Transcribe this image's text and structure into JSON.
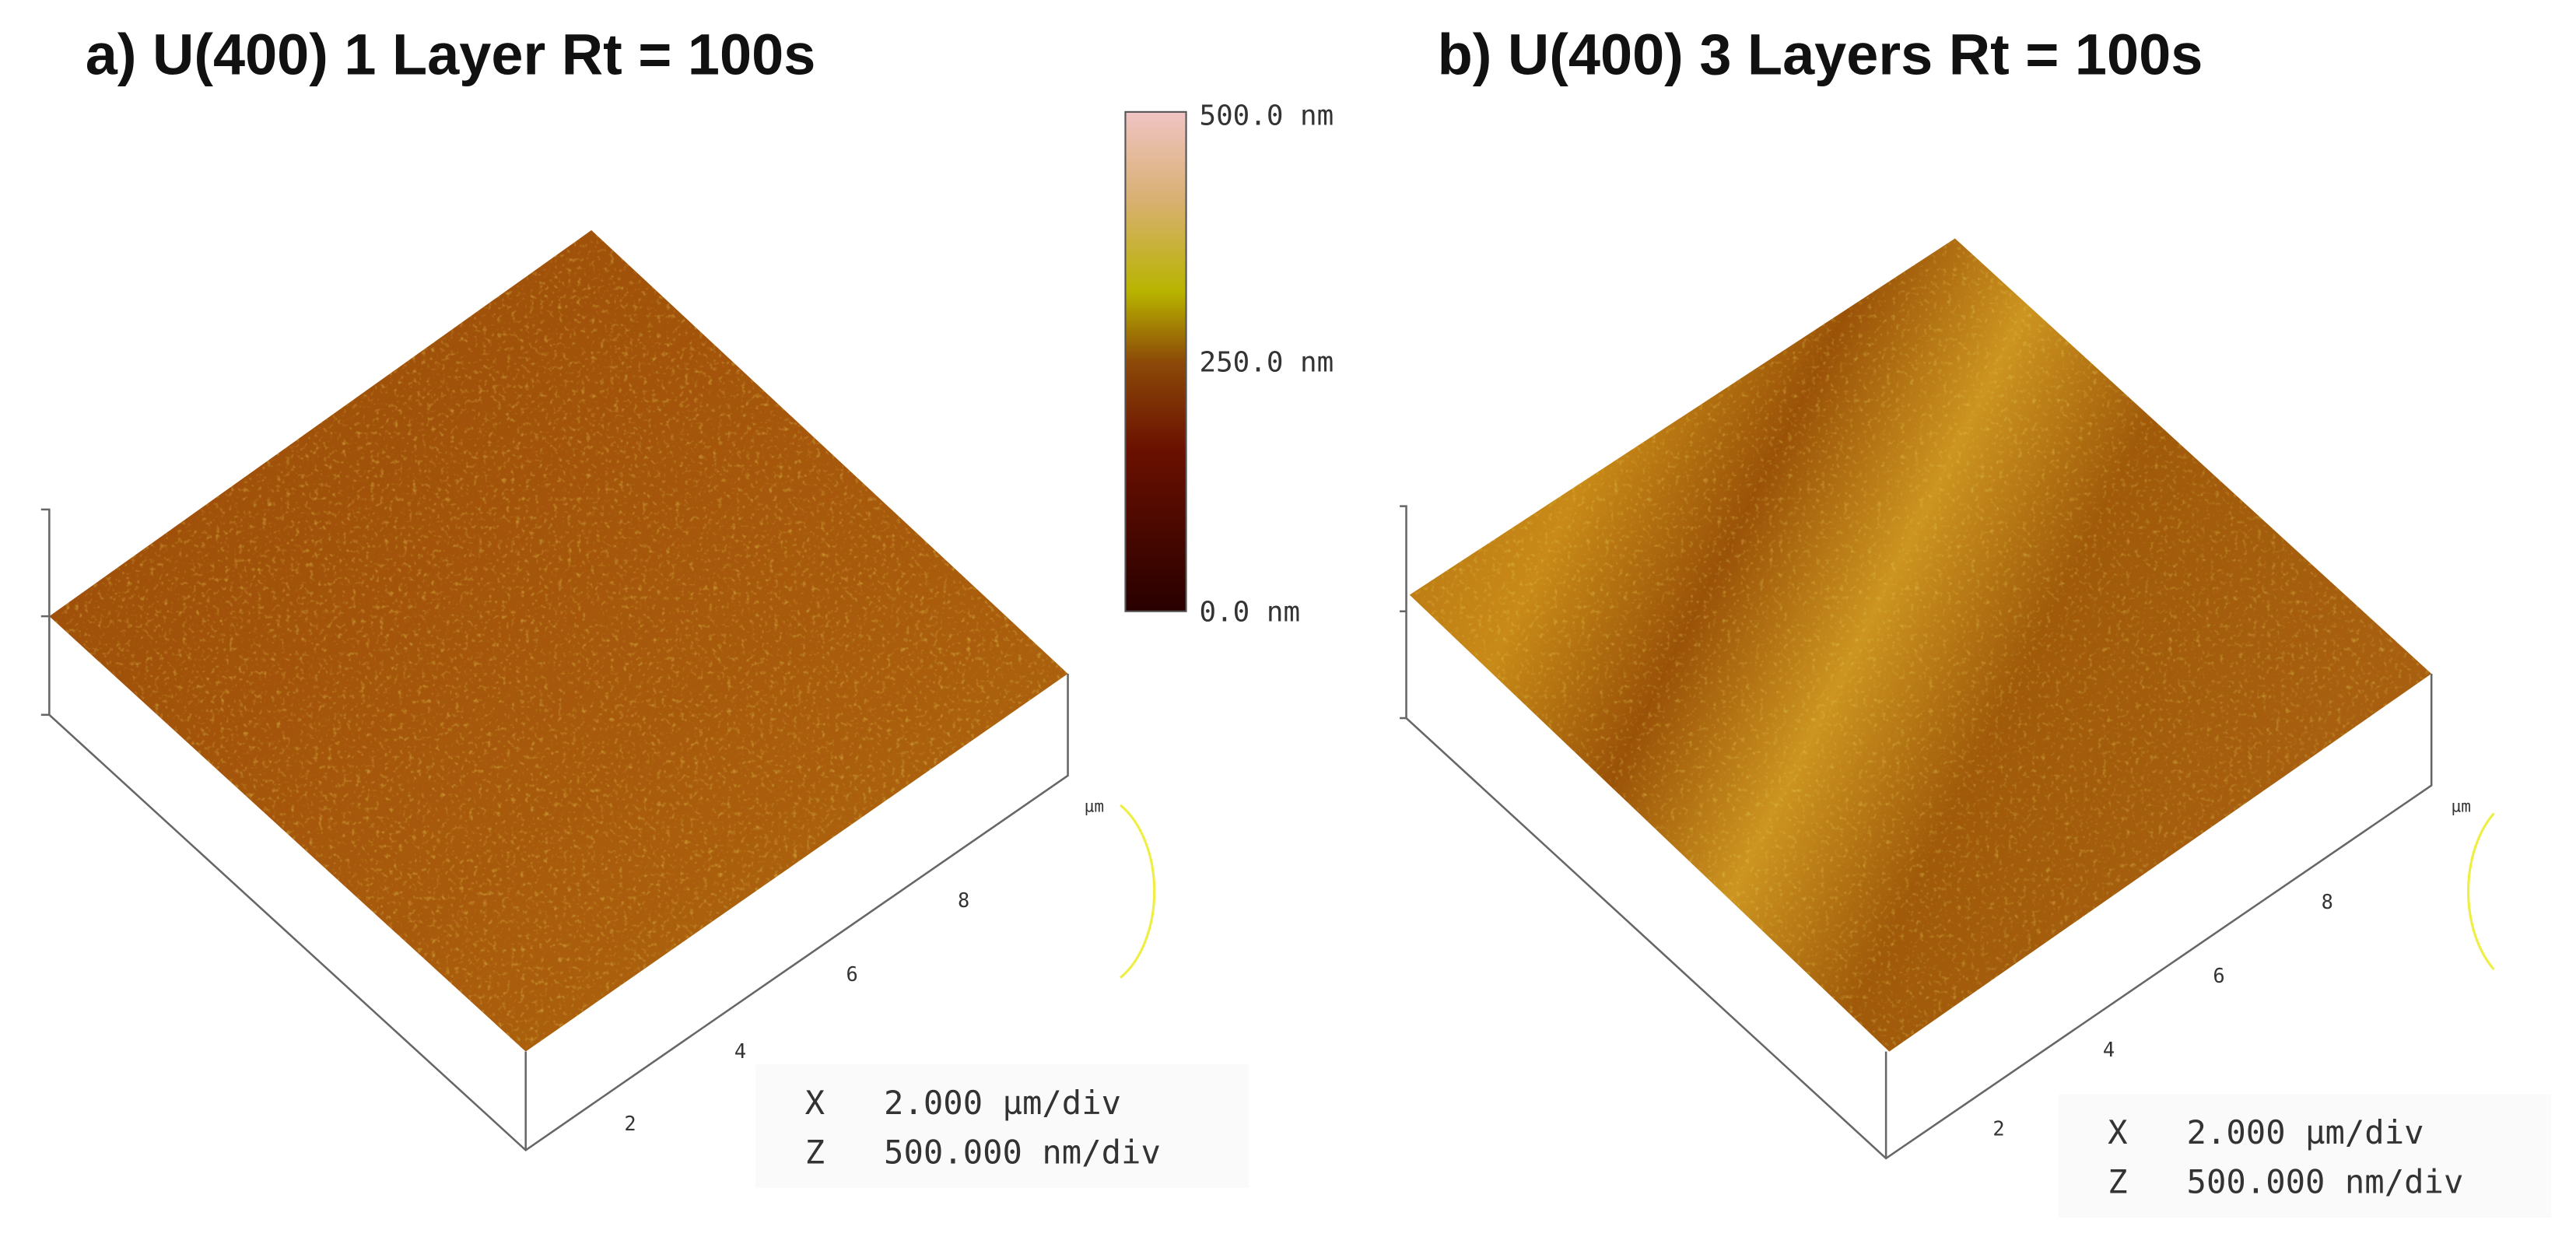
{
  "panels": [
    {
      "title": "a) U(400) 1 Layer  Rt = 100s",
      "axis_unit": "µm",
      "axis_ticks": [
        "2",
        "4",
        "6",
        "8"
      ],
      "scale": [
        {
          "axis": "X",
          "value": "2.000 µm/div"
        },
        {
          "axis": "Z",
          "value": "500.000 nm/div"
        }
      ]
    },
    {
      "title": "b) U(400) 3 Layers  Rt = 100s",
      "axis_unit": "µm",
      "axis_ticks": [
        "2",
        "4",
        "6",
        "8"
      ],
      "scale": [
        {
          "axis": "X",
          "value": "2.000 µm/div"
        },
        {
          "axis": "Z",
          "value": "500.000 nm/div"
        }
      ]
    }
  ],
  "colorbar": {
    "labels": [
      "500.0 nm",
      "250.0 nm",
      "0.0 nm"
    ]
  }
}
